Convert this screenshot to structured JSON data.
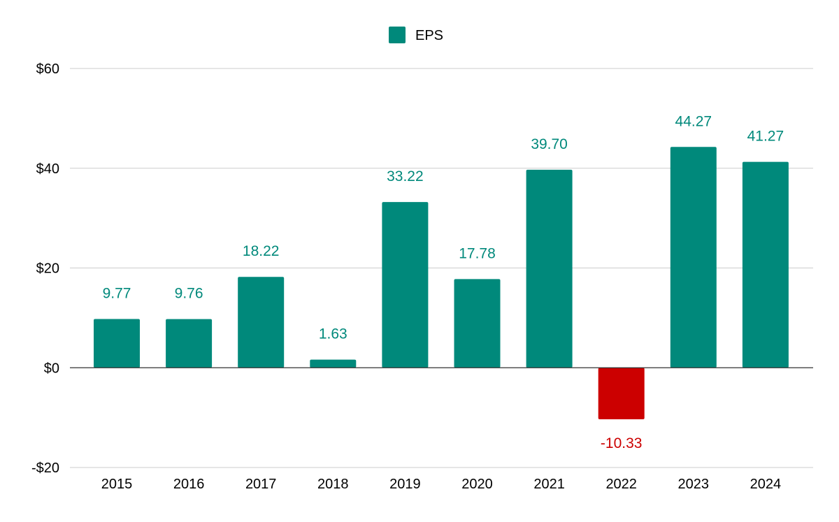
{
  "chart_data": {
    "type": "bar",
    "title": "",
    "xlabel": "",
    "ylabel": "",
    "categories": [
      "2015",
      "2016",
      "2017",
      "2018",
      "2019",
      "2020",
      "2021",
      "2022",
      "2023",
      "2024"
    ],
    "series": [
      {
        "name": "EPS",
        "values": [
          9.77,
          9.76,
          18.22,
          1.63,
          33.22,
          17.78,
          39.7,
          -10.33,
          44.27,
          41.27
        ],
        "data_labels": [
          "9.77",
          "9.76",
          "18.22",
          "1.63",
          "33.22",
          "17.78",
          "39.70",
          "-10.33",
          "44.27",
          "41.27"
        ]
      }
    ],
    "ylim": [
      -20,
      60
    ],
    "y_ticks": [
      60,
      40,
      20,
      0,
      -20
    ],
    "y_tick_labels": [
      "$60",
      "$40",
      "$20",
      "$0",
      "-$20"
    ],
    "grid": true,
    "legend": {
      "position": "top-center",
      "entries": [
        "EPS"
      ]
    },
    "colors": {
      "positive": "#00897b",
      "negative": "#cc0000",
      "grid": "#cccccc",
      "baseline": "#333333",
      "axis_text": "#000000"
    }
  }
}
